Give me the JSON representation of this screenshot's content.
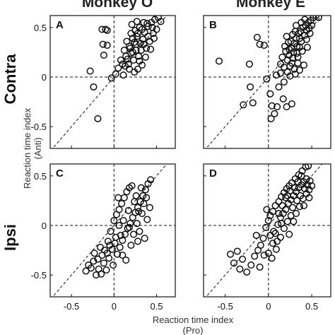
{
  "figure": {
    "col_titles": [
      "Monkey O",
      "Monkey E"
    ],
    "row_labels": [
      "Contra",
      "Ipsi"
    ],
    "y_label_lines": [
      "Reaction time index",
      "(Anti)"
    ],
    "x_label_lines": [
      "Reaction time index",
      "(Pro)"
    ]
  },
  "chart_data": [
    {
      "type": "scatter",
      "panel": "A",
      "xlim": [
        -0.75,
        0.72
      ],
      "ylim": [
        -0.72,
        0.62
      ],
      "xticks": [
        -0.5,
        0,
        0.5
      ],
      "xtick_labels": [
        "-0.5",
        "0",
        "0.5"
      ],
      "yticks": [
        -0.5,
        0,
        0.5
      ],
      "ytick_labels": [
        "-0.5",
        "0",
        "0.5"
      ],
      "reference_lines": [
        "x=0",
        "y=0",
        "y=x"
      ],
      "points": [
        [
          -0.14,
          0.48
        ],
        [
          -0.1,
          0.48
        ],
        [
          -0.08,
          0.47
        ],
        [
          -0.13,
          0.33
        ],
        [
          -0.08,
          0.32
        ],
        [
          -0.12,
          0.22
        ],
        [
          -0.28,
          0.06
        ],
        [
          -0.24,
          -0.1
        ],
        [
          -0.19,
          -0.42
        ],
        [
          -0.03,
          -0.01
        ],
        [
          0.02,
          0.03
        ],
        [
          0.11,
          0.02
        ],
        [
          0.05,
          0.09
        ],
        [
          0.13,
          0.11
        ],
        [
          0.08,
          0.17
        ],
        [
          0.17,
          0.13
        ],
        [
          0.14,
          0.21
        ],
        [
          0.2,
          0.24
        ],
        [
          0.23,
          0.17
        ],
        [
          0.26,
          0.27
        ],
        [
          0.29,
          0.21
        ],
        [
          0.31,
          0.34
        ],
        [
          0.27,
          0.41
        ],
        [
          0.34,
          0.38
        ],
        [
          0.36,
          0.45
        ],
        [
          0.4,
          0.51
        ],
        [
          0.44,
          0.55
        ],
        [
          0.48,
          0.58
        ],
        [
          0.52,
          0.6
        ],
        [
          0.55,
          0.56
        ],
        [
          0.38,
          0.29
        ],
        [
          0.42,
          0.36
        ],
        [
          0.46,
          0.44
        ],
        [
          0.33,
          0.12
        ],
        [
          0.37,
          0.2
        ],
        [
          0.18,
          0.31
        ],
        [
          0.22,
          0.39
        ],
        [
          0.25,
          0.47
        ],
        [
          0.3,
          0.5
        ],
        [
          0.35,
          0.55
        ],
        [
          0.45,
          0.5
        ],
        [
          0.5,
          0.48
        ],
        [
          0.28,
          0.08
        ],
        [
          0.24,
          0.05
        ],
        [
          0.19,
          0.29
        ],
        [
          0.15,
          0.36
        ],
        [
          0.12,
          0.27
        ],
        [
          0.21,
          0.53
        ],
        [
          0.32,
          0.27
        ],
        [
          0.4,
          0.41
        ],
        [
          0.26,
          0.33
        ],
        [
          0.3,
          0.16
        ],
        [
          0.16,
          0.18
        ],
        [
          0.43,
          0.28
        ],
        [
          0.35,
          0.33
        ],
        [
          0.2,
          0.44
        ],
        [
          0.27,
          0.56
        ],
        [
          0.1,
          0.13
        ],
        [
          0.24,
          0.35
        ],
        [
          0.39,
          0.54
        ],
        [
          0.47,
          0.39
        ],
        [
          0.33,
          0.48
        ],
        [
          0.22,
          0.25
        ],
        [
          0.18,
          0.08
        ],
        [
          0.28,
          0.44
        ]
      ]
    },
    {
      "type": "scatter",
      "panel": "B",
      "xlim": [
        -0.75,
        0.72
      ],
      "ylim": [
        -0.72,
        0.62
      ],
      "xticks": [
        -0.5,
        0,
        0.5
      ],
      "xtick_labels": [
        "-0.5",
        "0",
        "0.5"
      ],
      "yticks": [
        -0.5,
        0,
        0.5
      ],
      "ytick_labels": [
        "-0.5",
        "0",
        "0.5"
      ],
      "reference_lines": [
        "x=0",
        "y=0",
        "y=x"
      ],
      "points": [
        [
          -0.57,
          0.16
        ],
        [
          -0.22,
          0.13
        ],
        [
          -0.13,
          0.4
        ],
        [
          -0.1,
          0.33
        ],
        [
          -0.05,
          0.32
        ],
        [
          -0.21,
          -0.1
        ],
        [
          -0.29,
          -0.28
        ],
        [
          -0.18,
          -0.26
        ],
        [
          -0.02,
          -0.02
        ],
        [
          0.02,
          -0.17
        ],
        [
          0.04,
          -0.29
        ],
        [
          0.07,
          -0.37
        ],
        [
          0.03,
          -0.42
        ],
        [
          0.1,
          -0.3
        ],
        [
          0.17,
          -0.22
        ],
        [
          0.21,
          -0.3
        ],
        [
          0.27,
          -0.27
        ],
        [
          0.09,
          0.02
        ],
        [
          0.14,
          0.04
        ],
        [
          0.12,
          -0.1
        ],
        [
          0.18,
          0.1
        ],
        [
          0.22,
          0.17
        ],
        [
          0.24,
          0.22
        ],
        [
          0.27,
          0.29
        ],
        [
          0.3,
          0.34
        ],
        [
          0.32,
          0.39
        ],
        [
          0.35,
          0.44
        ],
        [
          0.37,
          0.46
        ],
        [
          0.4,
          0.5
        ],
        [
          0.43,
          0.52
        ],
        [
          0.46,
          0.55
        ],
        [
          0.49,
          0.57
        ],
        [
          0.52,
          0.6
        ],
        [
          0.55,
          0.62
        ],
        [
          0.58,
          0.6
        ],
        [
          0.25,
          0.11
        ],
        [
          0.28,
          0.19
        ],
        [
          0.33,
          0.24
        ],
        [
          0.36,
          0.3
        ],
        [
          0.38,
          0.36
        ],
        [
          0.42,
          0.42
        ],
        [
          0.44,
          0.38
        ],
        [
          0.3,
          0.08
        ],
        [
          0.34,
          0.14
        ],
        [
          0.2,
          0.26
        ],
        [
          0.26,
          0.36
        ],
        [
          0.28,
          0.43
        ],
        [
          0.32,
          0.52
        ],
        [
          0.38,
          0.55
        ],
        [
          0.42,
          0.58
        ],
        [
          0.47,
          0.49
        ],
        [
          0.5,
          0.52
        ],
        [
          0.22,
          0.05
        ],
        [
          0.25,
          0.01
        ],
        [
          0.31,
          0.03
        ],
        [
          0.36,
          0.07
        ],
        [
          0.41,
          0.12
        ],
        [
          0.16,
          0.2
        ],
        [
          0.19,
          0.31
        ],
        [
          0.24,
          0.28
        ],
        [
          0.29,
          0.25
        ],
        [
          0.34,
          0.2
        ],
        [
          0.39,
          0.26
        ],
        [
          0.44,
          0.47
        ],
        [
          0.27,
          0.14
        ],
        [
          0.23,
          0.35
        ],
        [
          0.33,
          0.31
        ],
        [
          0.45,
          0.3
        ],
        [
          0.18,
          -0.05
        ],
        [
          0.14,
          0.13
        ],
        [
          0.21,
          0.41
        ],
        [
          0.31,
          0.46
        ],
        [
          0.36,
          0.39
        ],
        [
          0.48,
          0.44
        ]
      ]
    },
    {
      "type": "scatter",
      "panel": "C",
      "xlim": [
        -0.75,
        0.72
      ],
      "ylim": [
        -0.72,
        0.62
      ],
      "xticks": [
        -0.5,
        0,
        0.5
      ],
      "xtick_labels": [
        "-0.5",
        "0",
        "0.5"
      ],
      "yticks": [
        -0.5,
        0,
        0.5
      ],
      "ytick_labels": [
        "-0.5",
        "0",
        "0.5"
      ],
      "reference_lines": [
        "x=0",
        "y=0",
        "y=x"
      ],
      "points": [
        [
          -0.33,
          -0.46
        ],
        [
          -0.3,
          -0.4
        ],
        [
          -0.27,
          -0.43
        ],
        [
          -0.24,
          -0.36
        ],
        [
          -0.21,
          -0.5
        ],
        [
          -0.18,
          -0.44
        ],
        [
          -0.15,
          -0.49
        ],
        [
          -0.12,
          -0.38
        ],
        [
          -0.09,
          -0.45
        ],
        [
          -0.06,
          -0.33
        ],
        [
          -0.14,
          -0.3
        ],
        [
          -0.11,
          -0.25
        ],
        [
          -0.08,
          -0.28
        ],
        [
          -0.05,
          -0.2
        ],
        [
          -0.02,
          -0.24
        ],
        [
          0.01,
          -0.18
        ],
        [
          0.04,
          -0.29
        ],
        [
          0.07,
          -0.22
        ],
        [
          0.1,
          -0.15
        ],
        [
          0.13,
          -0.09
        ],
        [
          0.16,
          -0.03
        ],
        [
          0.19,
          0.02
        ],
        [
          0.22,
          0.08
        ],
        [
          0.25,
          0.13
        ],
        [
          0.28,
          0.18
        ],
        [
          0.31,
          0.24
        ],
        [
          0.34,
          0.3
        ],
        [
          0.37,
          0.36
        ],
        [
          0.4,
          0.42
        ],
        [
          0.43,
          0.46
        ],
        [
          -0.04,
          -0.06
        ],
        [
          0.0,
          0.05
        ],
        [
          0.03,
          0.11
        ],
        [
          0.06,
          0.16
        ],
        [
          0.09,
          0.22
        ],
        [
          0.12,
          0.28
        ],
        [
          0.15,
          0.34
        ],
        [
          0.18,
          0.38
        ],
        [
          0.21,
          0.4
        ],
        [
          0.24,
          0.24
        ],
        [
          0.27,
          0.02
        ],
        [
          0.3,
          -0.06
        ],
        [
          0.33,
          0.12
        ],
        [
          0.36,
          -0.13
        ],
        [
          0.39,
          0.06
        ],
        [
          0.42,
          0.18
        ],
        [
          0.2,
          -0.2
        ],
        [
          0.14,
          -0.35
        ],
        [
          0.08,
          -0.1
        ],
        [
          -0.01,
          -0.4
        ],
        [
          -0.19,
          -0.34
        ],
        [
          -0.23,
          -0.28
        ],
        [
          0.05,
          0.28
        ],
        [
          0.11,
          0.05
        ],
        [
          0.17,
          0.15
        ],
        [
          0.26,
          0.3
        ],
        [
          0.32,
          0.38
        ],
        [
          0.02,
          -0.12
        ],
        [
          -0.07,
          -0.16
        ],
        [
          0.23,
          -0.09
        ],
        [
          0.29,
          0.14
        ],
        [
          0.35,
          0.22
        ],
        [
          0.38,
          0.28
        ],
        [
          0.1,
          -0.3
        ],
        [
          0.18,
          -0.02
        ],
        [
          -0.16,
          -0.22
        ],
        [
          0.06,
          0.0
        ],
        [
          0.28,
          -0.16
        ]
      ]
    },
    {
      "type": "scatter",
      "panel": "D",
      "xlim": [
        -0.75,
        0.72
      ],
      "ylim": [
        -0.72,
        0.62
      ],
      "xticks": [
        -0.5,
        0,
        0.5
      ],
      "xtick_labels": [
        "-0.5",
        "0",
        "0.5"
      ],
      "yticks": [
        -0.5,
        0,
        0.5
      ],
      "ytick_labels": [
        "-0.5",
        "0",
        "0.5"
      ],
      "reference_lines": [
        "x=0",
        "y=0",
        "y=x"
      ],
      "points": [
        [
          -0.44,
          -0.29
        ],
        [
          -0.4,
          -0.38
        ],
        [
          -0.36,
          -0.26
        ],
        [
          -0.33,
          -0.44
        ],
        [
          -0.3,
          -0.34
        ],
        [
          -0.25,
          -0.47
        ],
        [
          -0.2,
          -0.4
        ],
        [
          -0.16,
          -0.31
        ],
        [
          -0.12,
          -0.25
        ],
        [
          -0.09,
          -0.2
        ],
        [
          -0.06,
          -0.13
        ],
        [
          -0.03,
          -0.02
        ],
        [
          0.0,
          0.05
        ],
        [
          0.02,
          -0.1
        ],
        [
          0.05,
          -0.18
        ],
        [
          0.08,
          -0.08
        ],
        [
          0.11,
          0.01
        ],
        [
          0.14,
          0.08
        ],
        [
          0.17,
          0.12
        ],
        [
          0.2,
          0.16
        ],
        [
          0.23,
          0.22
        ],
        [
          0.26,
          0.26
        ],
        [
          0.29,
          0.3
        ],
        [
          0.32,
          0.34
        ],
        [
          0.35,
          0.38
        ],
        [
          0.38,
          0.41
        ],
        [
          0.41,
          0.44
        ],
        [
          0.44,
          0.47
        ],
        [
          0.47,
          0.36
        ],
        [
          0.5,
          0.4
        ],
        [
          0.05,
          0.14
        ],
        [
          0.08,
          0.2
        ],
        [
          0.12,
          0.24
        ],
        [
          0.15,
          0.29
        ],
        [
          0.18,
          0.33
        ],
        [
          0.21,
          0.37
        ],
        [
          0.24,
          0.4
        ],
        [
          0.27,
          0.43
        ],
        [
          0.31,
          0.47
        ],
        [
          0.35,
          0.51
        ],
        [
          0.39,
          0.55
        ],
        [
          0.43,
          0.59
        ],
        [
          0.46,
          0.6
        ],
        [
          0.33,
          0.25
        ],
        [
          0.36,
          0.19
        ],
        [
          0.4,
          0.27
        ],
        [
          0.44,
          0.32
        ],
        [
          0.26,
          0.1
        ],
        [
          0.22,
          0.04
        ],
        [
          0.18,
          -0.03
        ],
        [
          0.14,
          -0.12
        ],
        [
          0.1,
          -0.16
        ],
        [
          0.06,
          -0.06
        ],
        [
          0.02,
          0.1
        ],
        [
          -0.02,
          0.16
        ],
        [
          0.0,
          -0.28
        ],
        [
          0.04,
          -0.33
        ],
        [
          0.29,
          0.04
        ],
        [
          0.32,
          0.12
        ],
        [
          0.25,
          0.35
        ],
        [
          0.37,
          0.3
        ],
        [
          0.42,
          0.37
        ],
        [
          0.48,
          0.45
        ],
        [
          0.2,
          0.28
        ],
        [
          0.16,
          0.2
        ],
        [
          0.12,
          0.12
        ],
        [
          0.28,
          0.18
        ],
        [
          0.34,
          0.44
        ],
        [
          0.45,
          0.41
        ],
        [
          0.24,
          -0.09
        ],
        [
          -0.1,
          -0.42
        ],
        [
          -0.14,
          -0.1
        ],
        [
          0.09,
          -0.24
        ],
        [
          0.38,
          0.5
        ],
        [
          0.3,
          0.38
        ],
        [
          0.22,
          0.3
        ],
        [
          0.41,
          0.2
        ],
        [
          0.47,
          0.28
        ],
        [
          0.15,
          0.02
        ],
        [
          -0.05,
          -0.3
        ]
      ]
    }
  ]
}
